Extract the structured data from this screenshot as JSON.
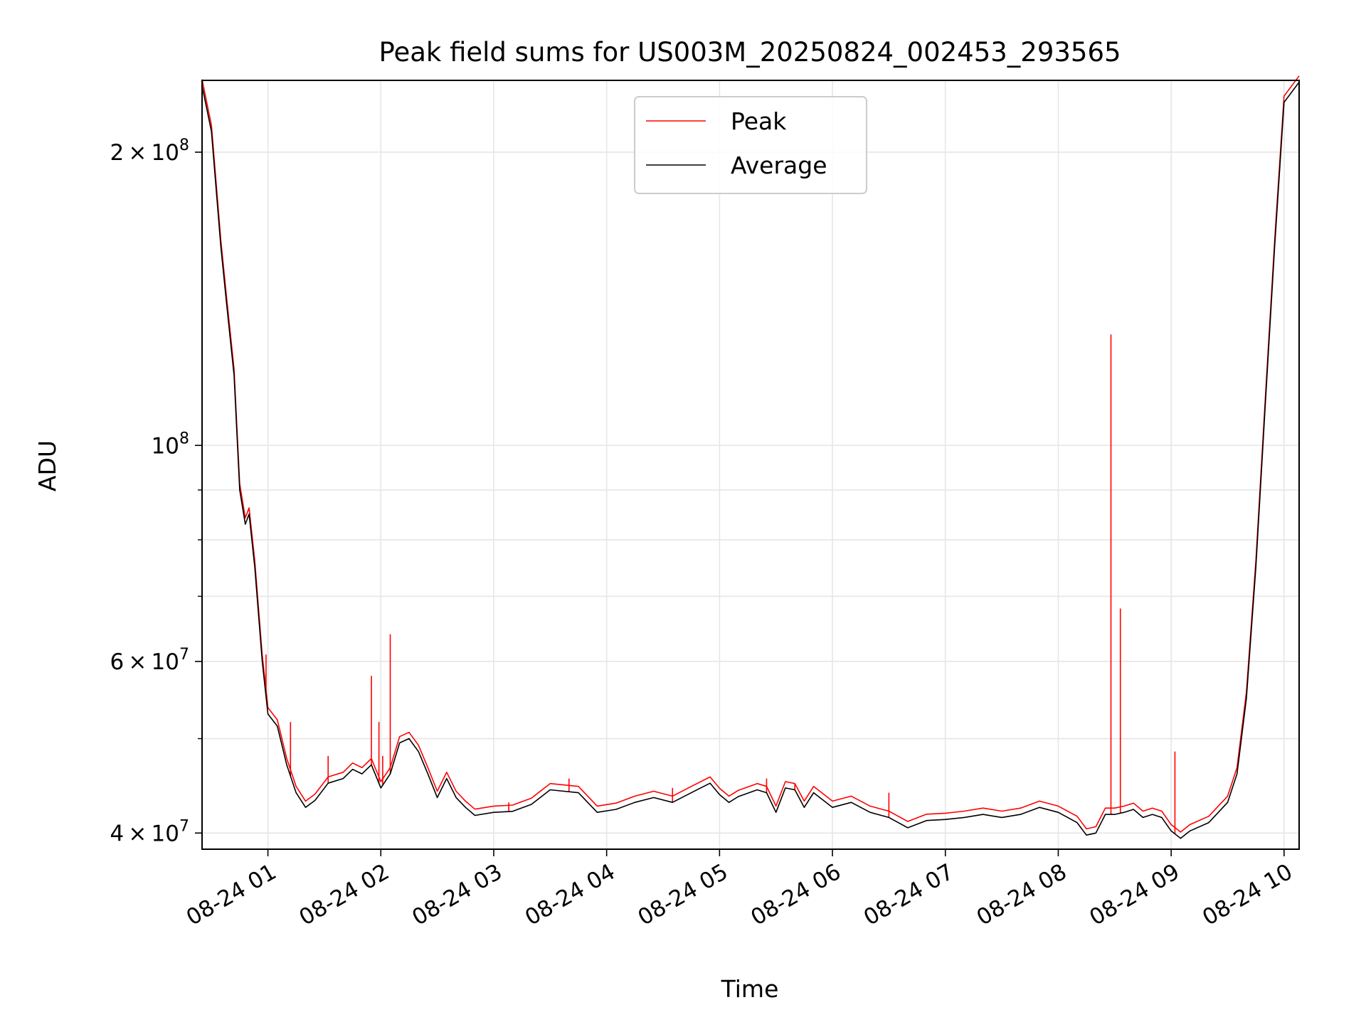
{
  "chart_data": {
    "type": "line",
    "title": "Peak field sums for US003M_20250824_002453_293565",
    "xlabel": "Time",
    "ylabel": "ADU",
    "y_scale": "log",
    "grid": true,
    "legend_position": "top-center",
    "xlim": [
      "2025-08-24 00:25",
      "2025-08-24 10:08"
    ],
    "ylim": [
      38500000,
      237000000
    ],
    "x_ticks": [
      {
        "value": "2025-08-24 01:00",
        "label": "08-24 01"
      },
      {
        "value": "2025-08-24 02:00",
        "label": "08-24 02"
      },
      {
        "value": "2025-08-24 03:00",
        "label": "08-24 03"
      },
      {
        "value": "2025-08-24 04:00",
        "label": "08-24 04"
      },
      {
        "value": "2025-08-24 05:00",
        "label": "08-24 05"
      },
      {
        "value": "2025-08-24 06:00",
        "label": "08-24 06"
      },
      {
        "value": "2025-08-24 07:00",
        "label": "08-24 07"
      },
      {
        "value": "2025-08-24 08:00",
        "label": "08-24 08"
      },
      {
        "value": "2025-08-24 09:00",
        "label": "08-24 09"
      },
      {
        "value": "2025-08-24 10:00",
        "label": "08-24 10"
      }
    ],
    "y_major_ticks": [
      {
        "value": 40000000,
        "mantissa": "4",
        "exponent": "7"
      },
      {
        "value": 60000000,
        "mantissa": "6",
        "exponent": "7"
      },
      {
        "value": 100000000,
        "mantissa": "",
        "exponent": "8"
      },
      {
        "value": 200000000,
        "mantissa": "2",
        "exponent": "8"
      }
    ],
    "y_minor_ticks": [
      50000000,
      70000000,
      80000000,
      90000000
    ],
    "tick_base": "10",
    "tick_times": "×",
    "series": [
      {
        "name": "Average",
        "color": "#000000",
        "points": [
          [
            "2025-08-24 00:25",
            234000000
          ],
          [
            "2025-08-24 00:30",
            210000000
          ],
          [
            "2025-08-24 00:35",
            160000000
          ],
          [
            "2025-08-24 00:38",
            140000000
          ],
          [
            "2025-08-24 00:42",
            118000000
          ],
          [
            "2025-08-24 00:45",
            90000000
          ],
          [
            "2025-08-24 00:48",
            83000000
          ],
          [
            "2025-08-24 00:50",
            85000000
          ],
          [
            "2025-08-24 00:53",
            75000000
          ],
          [
            "2025-08-24 00:57",
            60000000
          ],
          [
            "2025-08-24 01:00",
            53000000
          ],
          [
            "2025-08-24 01:05",
            51500000
          ],
          [
            "2025-08-24 01:10",
            47000000
          ],
          [
            "2025-08-24 01:15",
            44000000
          ],
          [
            "2025-08-24 01:20",
            42500000
          ],
          [
            "2025-08-24 01:25",
            43200000
          ],
          [
            "2025-08-24 01:32",
            45000000
          ],
          [
            "2025-08-24 01:40",
            45500000
          ],
          [
            "2025-08-24 01:45",
            46500000
          ],
          [
            "2025-08-24 01:50",
            46000000
          ],
          [
            "2025-08-24 01:55",
            47000000
          ],
          [
            "2025-08-24 02:00",
            44500000
          ],
          [
            "2025-08-24 02:05",
            46000000
          ],
          [
            "2025-08-24 02:10",
            49500000
          ],
          [
            "2025-08-24 02:15",
            50000000
          ],
          [
            "2025-08-24 02:20",
            48500000
          ],
          [
            "2025-08-24 02:25",
            46000000
          ],
          [
            "2025-08-24 02:30",
            43500000
          ],
          [
            "2025-08-24 02:35",
            45500000
          ],
          [
            "2025-08-24 02:40",
            43500000
          ],
          [
            "2025-08-24 02:45",
            42500000
          ],
          [
            "2025-08-24 02:50",
            41700000
          ],
          [
            "2025-08-24 03:00",
            42000000
          ],
          [
            "2025-08-24 03:10",
            42100000
          ],
          [
            "2025-08-24 03:20",
            42800000
          ],
          [
            "2025-08-24 03:30",
            44300000
          ],
          [
            "2025-08-24 03:45",
            44000000
          ],
          [
            "2025-08-24 03:55",
            42000000
          ],
          [
            "2025-08-24 04:05",
            42300000
          ],
          [
            "2025-08-24 04:15",
            43000000
          ],
          [
            "2025-08-24 04:25",
            43500000
          ],
          [
            "2025-08-24 04:35",
            43000000
          ],
          [
            "2025-08-24 04:45",
            44000000
          ],
          [
            "2025-08-24 04:55",
            45000000
          ],
          [
            "2025-08-24 05:00",
            43800000
          ],
          [
            "2025-08-24 05:05",
            43000000
          ],
          [
            "2025-08-24 05:10",
            43600000
          ],
          [
            "2025-08-24 05:20",
            44300000
          ],
          [
            "2025-08-24 05:25",
            44000000
          ],
          [
            "2025-08-24 05:30",
            42000000
          ],
          [
            "2025-08-24 05:35",
            44500000
          ],
          [
            "2025-08-24 05:40",
            44300000
          ],
          [
            "2025-08-24 05:45",
            42500000
          ],
          [
            "2025-08-24 05:50",
            44000000
          ],
          [
            "2025-08-24 06:00",
            42500000
          ],
          [
            "2025-08-24 06:10",
            43000000
          ],
          [
            "2025-08-24 06:20",
            42000000
          ],
          [
            "2025-08-24 06:30",
            41500000
          ],
          [
            "2025-08-24 06:40",
            40500000
          ],
          [
            "2025-08-24 06:50",
            41200000
          ],
          [
            "2025-08-24 07:00",
            41300000
          ],
          [
            "2025-08-24 07:10",
            41500000
          ],
          [
            "2025-08-24 07:20",
            41800000
          ],
          [
            "2025-08-24 07:30",
            41500000
          ],
          [
            "2025-08-24 07:40",
            41800000
          ],
          [
            "2025-08-24 07:50",
            42500000
          ],
          [
            "2025-08-24 08:00",
            42000000
          ],
          [
            "2025-08-24 08:10",
            41000000
          ],
          [
            "2025-08-24 08:15",
            39800000
          ],
          [
            "2025-08-24 08:20",
            40000000
          ],
          [
            "2025-08-24 08:25",
            41800000
          ],
          [
            "2025-08-24 08:30",
            41800000
          ],
          [
            "2025-08-24 08:35",
            42000000
          ],
          [
            "2025-08-24 08:40",
            42300000
          ],
          [
            "2025-08-24 08:45",
            41500000
          ],
          [
            "2025-08-24 08:50",
            41800000
          ],
          [
            "2025-08-24 08:55",
            41500000
          ],
          [
            "2025-08-24 09:00",
            40200000
          ],
          [
            "2025-08-24 09:05",
            39500000
          ],
          [
            "2025-08-24 09:10",
            40200000
          ],
          [
            "2025-08-24 09:20",
            41000000
          ],
          [
            "2025-08-24 09:30",
            43000000
          ],
          [
            "2025-08-24 09:35",
            46000000
          ],
          [
            "2025-08-24 09:40",
            55000000
          ],
          [
            "2025-08-24 09:45",
            75000000
          ],
          [
            "2025-08-24 09:50",
            110000000
          ],
          [
            "2025-08-24 09:55",
            160000000
          ],
          [
            "2025-08-24 10:00",
            225000000
          ],
          [
            "2025-08-24 10:08",
            236000000
          ]
        ]
      },
      {
        "name": "Peak",
        "color": "#ff0000",
        "spikes": [
          [
            "2025-08-24 00:59",
            61000000
          ],
          [
            "2025-08-24 01:12",
            52000000
          ],
          [
            "2025-08-24 01:32",
            48000000
          ],
          [
            "2025-08-24 01:55",
            58000000
          ],
          [
            "2025-08-24 01:59",
            52000000
          ],
          [
            "2025-08-24 02:01",
            48000000
          ],
          [
            "2025-08-24 02:05",
            64000000
          ],
          [
            "2025-08-24 03:08",
            43000000
          ],
          [
            "2025-08-24 03:40",
            45500000
          ],
          [
            "2025-08-24 04:35",
            44500000
          ],
          [
            "2025-08-24 05:25",
            45500000
          ],
          [
            "2025-08-24 05:40",
            45000000
          ],
          [
            "2025-08-24 06:30",
            44000000
          ],
          [
            "2025-08-24 08:28",
            130000000
          ],
          [
            "2025-08-24 08:33",
            68000000
          ],
          [
            "2025-08-24 09:02",
            48500000
          ]
        ]
      }
    ]
  }
}
